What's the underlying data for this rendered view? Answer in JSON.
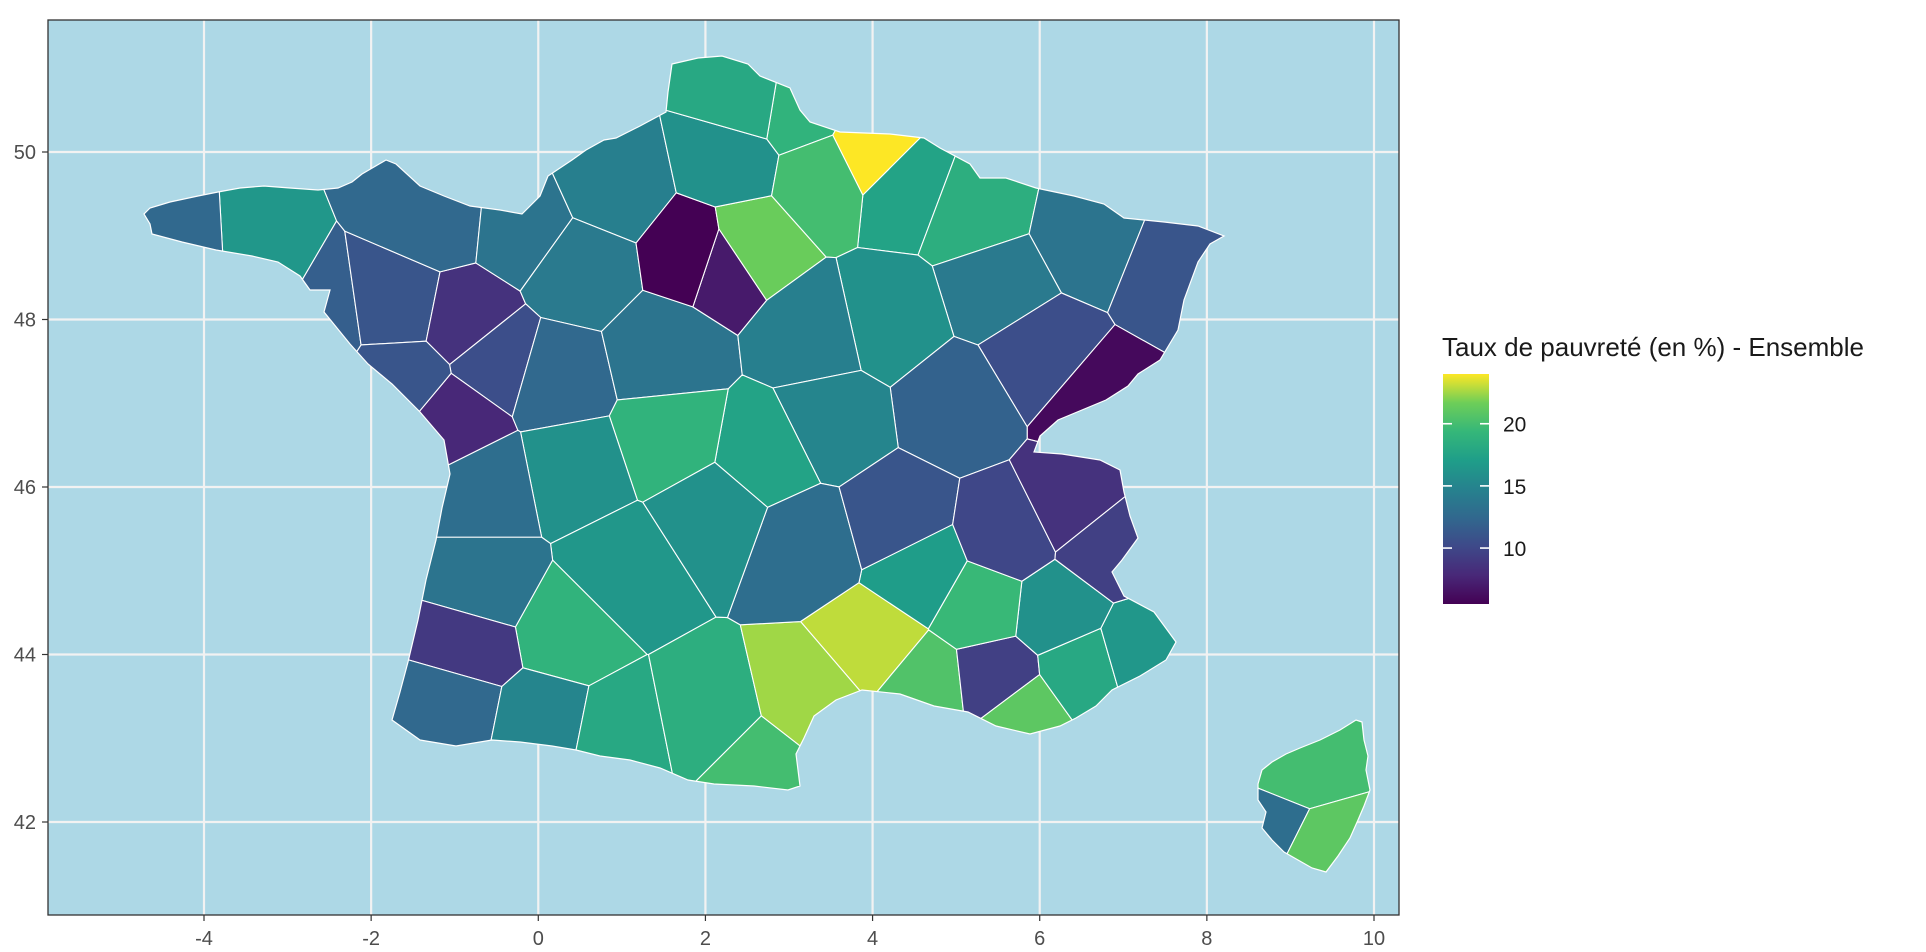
{
  "chart_data": {
    "type": "map",
    "title": "",
    "xlabel": "",
    "ylabel": "",
    "xlim": [
      -6,
      10.2
    ],
    "ylim": [
      40.9,
      51.8
    ],
    "x_ticks": [
      -4,
      -2,
      0,
      2,
      4,
      6,
      8,
      10
    ],
    "y_ticks": [
      42,
      44,
      46,
      48,
      50
    ],
    "x_tick_labels": [
      "-4",
      "-2",
      "0",
      "2",
      "4",
      "6",
      "8",
      "10"
    ],
    "y_tick_labels": [
      "42",
      "44",
      "46",
      "48",
      "50"
    ],
    "grid": true,
    "panel_background": "#add8e6",
    "grid_color": "#f2f2f2",
    "region_border_color": "#ffffff",
    "colormap": "viridis",
    "legend": {
      "title": "Taux de pauvreté (en %) - Ensemble",
      "position": "right",
      "min": 5.5,
      "max": 24,
      "ticks": [
        10,
        15,
        20
      ],
      "tick_labels": [
        "10",
        "15",
        "20"
      ]
    },
    "regions": [
      {
        "lon": -3.3,
        "lat": 48.35,
        "value": 16.5
      },
      {
        "lon": -4.2,
        "lat": 48.3,
        "value": 12.5
      },
      {
        "lon": -2.7,
        "lat": 48.0,
        "value": 11.8
      },
      {
        "lon": -1.65,
        "lat": 48.15,
        "value": 11.0
      },
      {
        "lon": -0.9,
        "lat": 48.0,
        "value": 8.5
      },
      {
        "lon": -1.2,
        "lat": 49.2,
        "value": 12.5
      },
      {
        "lon": -0.2,
        "lat": 49.1,
        "value": 13.5
      },
      {
        "lon": 0.9,
        "lat": 49.6,
        "value": 14.5
      },
      {
        "lon": 0.5,
        "lat": 48.6,
        "value": 14.0
      },
      {
        "lon": -0.5,
        "lat": 47.5,
        "value": 10.5
      },
      {
        "lon": -1.0,
        "lat": 46.8,
        "value": 7.8
      },
      {
        "lon": -1.6,
        "lat": 47.3,
        "value": 11.0
      },
      {
        "lon": 0.2,
        "lat": 47.3,
        "value": 12.5
      },
      {
        "lon": 1.5,
        "lat": 47.6,
        "value": 13.5
      },
      {
        "lon": 2.2,
        "lat": 48.7,
        "value": 7.0
      },
      {
        "lon": 1.9,
        "lat": 48.8,
        "value": 5.5
      },
      {
        "lon": 2.5,
        "lat": 48.9,
        "value": 21.5
      },
      {
        "lon": 2.3,
        "lat": 49.9,
        "value": 16.0
      },
      {
        "lon": 3.1,
        "lat": 50.5,
        "value": 19.0
      },
      {
        "lon": 2.5,
        "lat": 50.6,
        "value": 18.0
      },
      {
        "lon": 4.0,
        "lat": 50.0,
        "value": 24.0
      },
      {
        "lon": 4.4,
        "lat": 49.6,
        "value": 17.5
      },
      {
        "lon": 3.4,
        "lat": 49.7,
        "value": 20.0
      },
      {
        "lon": 5.2,
        "lat": 49.3,
        "value": 18.5
      },
      {
        "lon": 6.6,
        "lat": 49.0,
        "value": 13.5
      },
      {
        "lon": 7.6,
        "lat": 48.6,
        "value": 11.0
      },
      {
        "lon": 5.5,
        "lat": 48.4,
        "value": 14.0
      },
      {
        "lon": 4.2,
        "lat": 48.0,
        "value": 16.0
      },
      {
        "lon": 3.3,
        "lat": 47.8,
        "value": 14.5
      },
      {
        "lon": 6.0,
        "lat": 47.6,
        "value": 10.5
      },
      {
        "lon": 6.7,
        "lat": 47.0,
        "value": 6.0
      },
      {
        "lon": 5.0,
        "lat": 47.0,
        "value": 12.0
      },
      {
        "lon": 3.5,
        "lat": 46.8,
        "value": 15.0
      },
      {
        "lon": 2.7,
        "lat": 46.4,
        "value": 17.5
      },
      {
        "lon": 1.6,
        "lat": 46.6,
        "value": 19.0
      },
      {
        "lon": 0.4,
        "lat": 46.2,
        "value": 16.0
      },
      {
        "lon": -0.6,
        "lat": 46.0,
        "value": 13.0
      },
      {
        "lon": 1.0,
        "lat": 45.0,
        "value": 16.5
      },
      {
        "lon": 0.3,
        "lat": 44.3,
        "value": 19.0
      },
      {
        "lon": -0.6,
        "lat": 44.8,
        "value": 13.5
      },
      {
        "lon": -0.8,
        "lat": 44.1,
        "value": 9.0
      },
      {
        "lon": -1.0,
        "lat": 43.4,
        "value": 12.5
      },
      {
        "lon": 0.0,
        "lat": 43.2,
        "value": 15.0
      },
      {
        "lon": 1.0,
        "lat": 43.0,
        "value": 18.0
      },
      {
        "lon": 2.0,
        "lat": 43.2,
        "value": 18.5
      },
      {
        "lon": 2.6,
        "lat": 42.6,
        "value": 20.0
      },
      {
        "lon": 3.3,
        "lat": 43.5,
        "value": 22.5
      },
      {
        "lon": 4.0,
        "lat": 44.1,
        "value": 23.0
      },
      {
        "lon": 4.6,
        "lat": 43.6,
        "value": 20.5
      },
      {
        "lon": 5.5,
        "lat": 43.7,
        "value": 9.5
      },
      {
        "lon": 5.8,
        "lat": 43.3,
        "value": 21.0
      },
      {
        "lon": 6.5,
        "lat": 43.8,
        "value": 18.0
      },
      {
        "lon": 7.2,
        "lat": 44.0,
        "value": 16.5
      },
      {
        "lon": 6.2,
        "lat": 44.5,
        "value": 16.0
      },
      {
        "lon": 5.3,
        "lat": 44.6,
        "value": 19.5
      },
      {
        "lon": 4.6,
        "lat": 45.0,
        "value": 17.0
      },
      {
        "lon": 3.2,
        "lat": 45.3,
        "value": 13.0
      },
      {
        "lon": 2.1,
        "lat": 45.7,
        "value": 16.0
      },
      {
        "lon": 4.3,
        "lat": 45.6,
        "value": 11.0
      },
      {
        "lon": 5.6,
        "lat": 45.4,
        "value": 10.0
      },
      {
        "lon": 6.4,
        "lat": 45.8,
        "value": 8.5
      },
      {
        "lon": 6.8,
        "lat": 45.3,
        "value": 9.5
      },
      {
        "lon": 9.1,
        "lat": 42.5,
        "value": 20.0
      },
      {
        "lon": 8.9,
        "lat": 42.0,
        "value": 13.0
      },
      {
        "lon": 9.3,
        "lat": 41.8,
        "value": 21.0
      }
    ]
  }
}
